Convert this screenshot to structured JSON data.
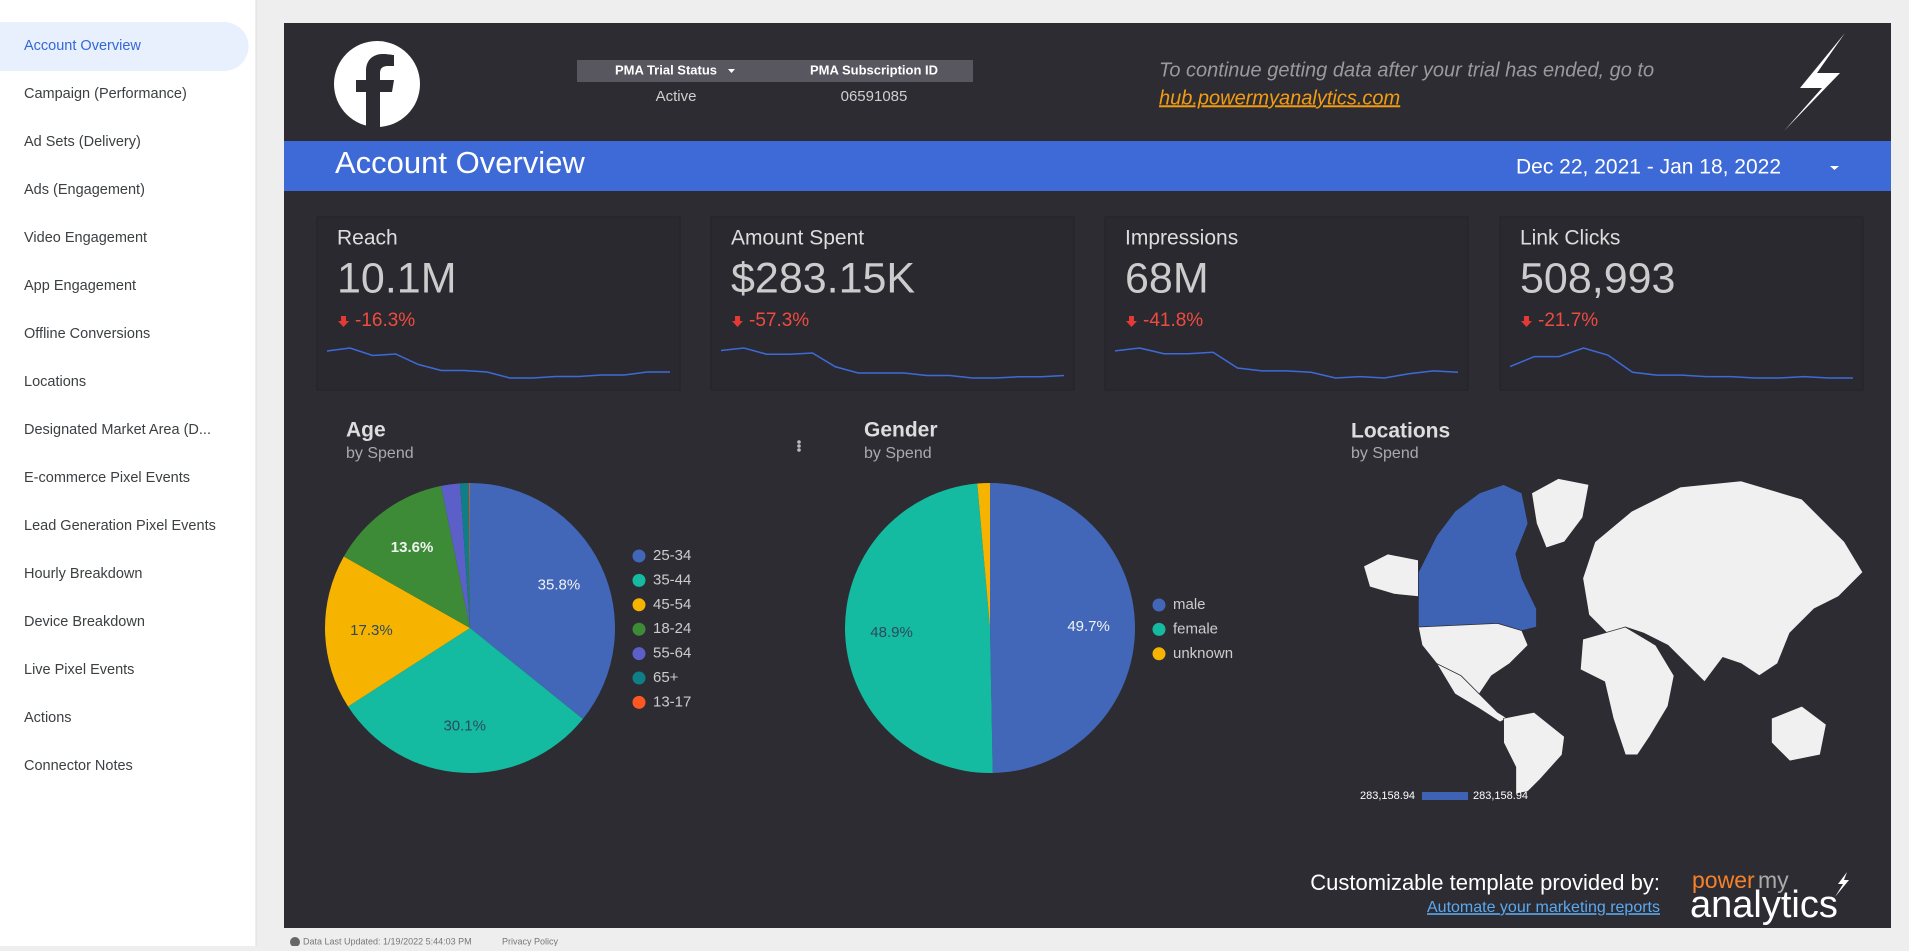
{
  "sidebar": {
    "items": [
      "Account Overview",
      "Campaign (Performance)",
      "Ad Sets (Delivery)",
      "Ads (Engagement)",
      "Video Engagement",
      "App Engagement",
      "Offline Conversions",
      "Locations",
      "Designated Market Area (D...",
      "E-commerce Pixel Events",
      "Lead Generation Pixel Events",
      "Hourly Breakdown",
      "Device Breakdown",
      "Live Pixel Events",
      "Actions",
      "Connector Notes"
    ]
  },
  "header": {
    "pma_table": {
      "columns": [
        "PMA Trial Status",
        "PMA Subscription ID"
      ],
      "rows": [
        [
          "Active",
          "06591085"
        ]
      ]
    },
    "notice": "To continue getting data after your trial has ended, go to",
    "link": "hub.powermyanalytics.com"
  },
  "banner": {
    "title": "Account Overview",
    "date_range": "Dec 22, 2021 - Jan 18, 2022"
  },
  "kpis": [
    {
      "title": "Reach",
      "value": "10.1M",
      "delta": "-16.3%",
      "trend": [
        26,
        28,
        23,
        24,
        17,
        13,
        13,
        12,
        8,
        8,
        9,
        9,
        10,
        10,
        12,
        12
      ]
    },
    {
      "title": "Amount Spent",
      "value": "$283.15K",
      "delta": "-57.3%",
      "trend": [
        23,
        25,
        20,
        20,
        21,
        10,
        5,
        5,
        5,
        3,
        3,
        1,
        1,
        2,
        2,
        3
      ]
    },
    {
      "title": "Impressions",
      "value": "68M",
      "delta": "-41.8%",
      "trend": [
        22,
        24,
        20,
        20,
        21,
        10,
        8,
        8,
        7,
        3,
        4,
        3,
        6,
        8,
        7
      ]
    },
    {
      "title": "Link Clicks",
      "value": "508,993",
      "delta": "-21.7%",
      "trend": [
        11,
        18,
        18,
        24,
        19,
        7,
        5,
        5,
        4,
        4,
        3,
        3,
        4,
        3,
        3
      ]
    }
  ],
  "age_chart": {
    "type": "pie",
    "title": "Age",
    "subtitle": "by Spend",
    "categories": [
      "25-34",
      "35-44",
      "45-54",
      "18-24",
      "55-64",
      "65+",
      "13-17"
    ],
    "values": [
      35.8,
      30.1,
      17.3,
      13.6,
      2.1,
      1.0,
      0.1
    ],
    "value_labels": [
      "35.8%",
      "30.1%",
      "17.3%",
      "13.6%",
      null,
      null,
      null
    ],
    "colors": [
      "#4267b8",
      "#14bba0",
      "#f6b400",
      "#3d8b37",
      "#5c5fc8",
      "#0f7e87",
      "#ff5722"
    ]
  },
  "gender_chart": {
    "type": "pie",
    "title": "Gender",
    "subtitle": "by Spend",
    "categories": [
      "male",
      "female",
      "unknown"
    ],
    "values": [
      49.7,
      48.9,
      1.4
    ],
    "value_labels": [
      "49.7%",
      "48.9%",
      null
    ],
    "colors": [
      "#4267b8",
      "#14bba0",
      "#f6b400"
    ]
  },
  "map": {
    "title": "Locations",
    "subtitle": "by Spend",
    "legend_min": "283,158.94",
    "legend_max": "283,158.94"
  },
  "footer": {
    "credit": "Customizable template provided by:",
    "link": "Automate your marketing reports",
    "logo_power": "power",
    "logo_my": "my",
    "logo_analytics": "analytics"
  },
  "status_bar": {
    "updated": "Data Last Updated: 1/19/2022 5:44:03 PM",
    "privacy": "Privacy Policy"
  }
}
